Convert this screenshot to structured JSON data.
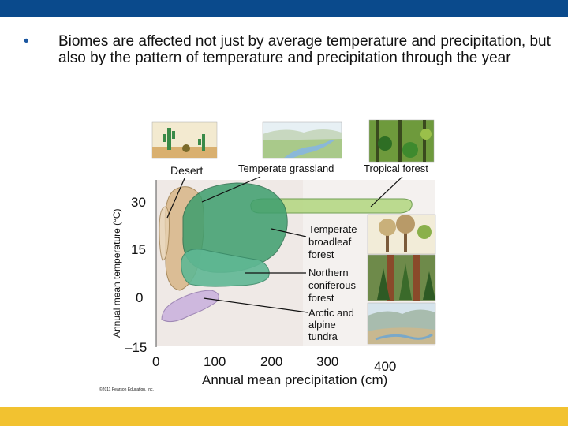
{
  "slide": {
    "bullet_char": "•",
    "bullet_text": "Biomes are affected not just by average temperature and precipitation, but also by the pattern of temperature and precipitation through the year"
  },
  "figure": {
    "y_axis_label": "Annual mean temperature (°C)",
    "x_axis_label": "Annual mean precipitation (cm)",
    "y_ticks": [
      "30",
      "15",
      "0",
      "–15"
    ],
    "x_ticks": [
      "0",
      "100",
      "200",
      "300",
      "400"
    ],
    "biome_labels": {
      "desert": "Desert",
      "temperate_grassland": "Temperate grassland",
      "tropical_forest": "Tropical forest",
      "temperate_broadleaf_forest": [
        "Temperate",
        "broadleaf",
        "forest"
      ],
      "northern_coniferous_forest": [
        "Northern",
        "coniferous",
        "forest"
      ],
      "arctic_alpine_tundra": [
        "Arctic and",
        "alpine",
        "tundra"
      ]
    },
    "credit": "©2011 Pearson Education, Inc.",
    "colors": {
      "plot_bg": "#efe9e6",
      "desert": "#d9b98d",
      "temperate_grassland": "#b9d98a",
      "tropical_forest": "#b9d98a",
      "temperate_broadleaf_forest": "#3d9e6e",
      "northern_coniferous_forest": "#5fb894",
      "arctic_alpine_tundra": "#cdb6de"
    },
    "icons": [
      "desert-scene-icon",
      "grassland-scene-icon",
      "tropical-forest-scene-icon",
      "broadleaf-forest-scene-icon",
      "coniferous-forest-scene-icon",
      "tundra-scene-icon"
    ]
  }
}
